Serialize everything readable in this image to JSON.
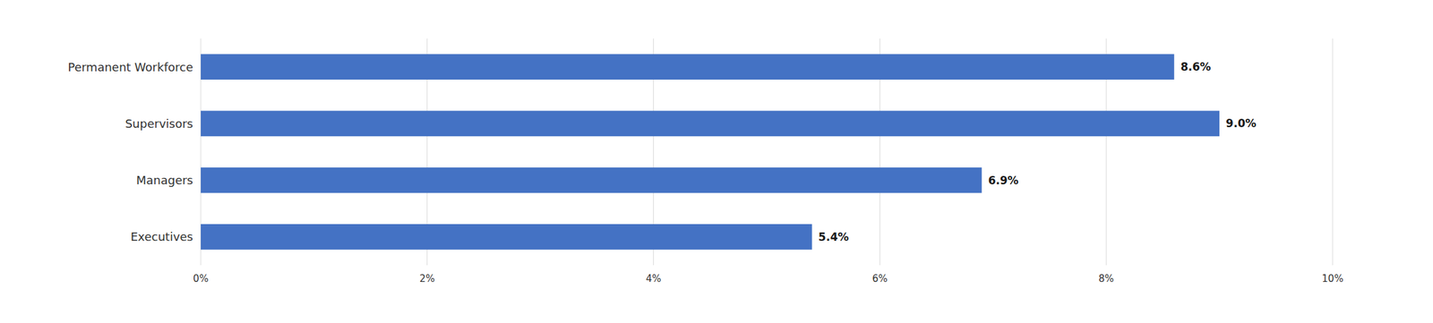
{
  "chart_data": {
    "type": "bar",
    "orientation": "horizontal",
    "categories": [
      "Permanent Workforce",
      "Supervisors",
      "Managers",
      "Executives"
    ],
    "values": [
      8.6,
      9.0,
      6.9,
      5.4
    ],
    "value_labels": [
      "8.6%",
      "9.0%",
      "6.9%",
      "5.4%"
    ],
    "data_labels": true,
    "color": "#4472C4",
    "xlim": [
      0,
      10
    ],
    "xticks": [
      {
        "value": 0,
        "label": "0%"
      },
      {
        "value": 2,
        "label": "2%"
      },
      {
        "value": 4,
        "label": "4%"
      },
      {
        "value": 6,
        "label": "6%"
      },
      {
        "value": 8,
        "label": "8%"
      },
      {
        "value": 10,
        "label": "10%"
      }
    ],
    "grid": true
  }
}
